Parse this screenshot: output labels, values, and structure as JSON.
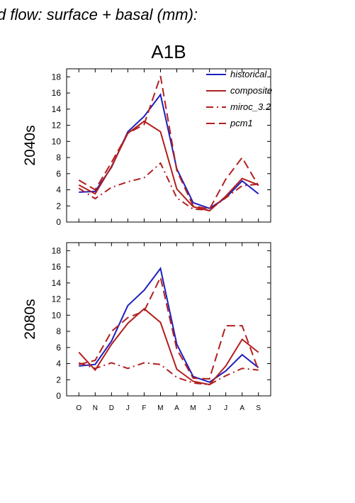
{
  "header": {
    "suptitle": "d flow: surface + basal (mm):",
    "title": "A1B"
  },
  "colors": {
    "historical": "#1f1fbf",
    "composite": "#b21f1f",
    "miroc_3.2": "#b21f1f",
    "pcm1": "#b21f1f"
  },
  "legend": {
    "placement": "top-right",
    "entries": [
      {
        "label": "historical",
        "style": "solid",
        "color": "#1f1fbf"
      },
      {
        "label": "composite",
        "style": "solid",
        "color": "#b21f1f"
      },
      {
        "label": "miroc_3.2",
        "style": "dashdot",
        "color": "#b21f1f"
      },
      {
        "label": "pcm1",
        "style": "dashed",
        "color": "#b21f1f"
      }
    ]
  },
  "chart_data": [
    {
      "type": "line",
      "row_label": "2040s",
      "categories": [
        "O",
        "N",
        "D",
        "J",
        "F",
        "M",
        "A",
        "M",
        "J",
        "J",
        "A",
        "S"
      ],
      "ylim": [
        0,
        19
      ],
      "yticks": [
        0,
        2,
        4,
        6,
        8,
        10,
        12,
        14,
        16,
        18
      ],
      "series": [
        {
          "name": "historical",
          "style": "solid",
          "values": [
            3.7,
            3.8,
            6.8,
            11.2,
            13.1,
            15.8,
            6.6,
            2.4,
            1.7,
            3.0,
            5.1,
            3.5
          ]
        },
        {
          "name": "composite",
          "style": "solid",
          "values": [
            4.6,
            3.5,
            6.9,
            11.0,
            12.5,
            11.2,
            4.1,
            1.9,
            1.4,
            3.2,
            5.4,
            4.6
          ]
        },
        {
          "name": "miroc_3.2",
          "style": "dashdot",
          "values": [
            4.2,
            2.9,
            4.3,
            5.0,
            5.5,
            7.3,
            3.0,
            1.6,
            1.5,
            3.0,
            4.5,
            4.7
          ]
        },
        {
          "name": "pcm1",
          "style": "dashed",
          "values": [
            5.2,
            4.0,
            7.4,
            11.0,
            12.1,
            18.1,
            6.4,
            2.0,
            1.6,
            5.3,
            8.0,
            4.5
          ]
        }
      ]
    },
    {
      "type": "line",
      "row_label": "2080s",
      "categories": [
        "O",
        "N",
        "D",
        "J",
        "F",
        "M",
        "A",
        "M",
        "J",
        "J",
        "A",
        "S"
      ],
      "ylim": [
        0,
        19
      ],
      "yticks": [
        0,
        2,
        4,
        6,
        8,
        10,
        12,
        14,
        16,
        18
      ],
      "series": [
        {
          "name": "historical",
          "style": "solid",
          "values": [
            3.7,
            3.9,
            6.8,
            11.2,
            13.1,
            15.8,
            6.4,
            2.4,
            1.7,
            3.1,
            5.1,
            3.5
          ]
        },
        {
          "name": "composite",
          "style": "solid",
          "values": [
            5.4,
            3.2,
            6.4,
            9.0,
            10.8,
            9.1,
            3.3,
            1.8,
            1.4,
            3.7,
            7.0,
            5.4
          ]
        },
        {
          "name": "miroc_3.2",
          "style": "dashdot",
          "values": [
            4.1,
            3.4,
            4.1,
            3.4,
            4.1,
            3.9,
            2.3,
            1.6,
            1.4,
            2.5,
            3.4,
            3.2
          ]
        },
        {
          "name": "pcm1",
          "style": "dashed",
          "values": [
            3.9,
            4.4,
            8.0,
            9.7,
            10.5,
            14.7,
            5.8,
            2.2,
            2.1,
            8.7,
            8.7,
            3.2
          ]
        }
      ]
    }
  ]
}
